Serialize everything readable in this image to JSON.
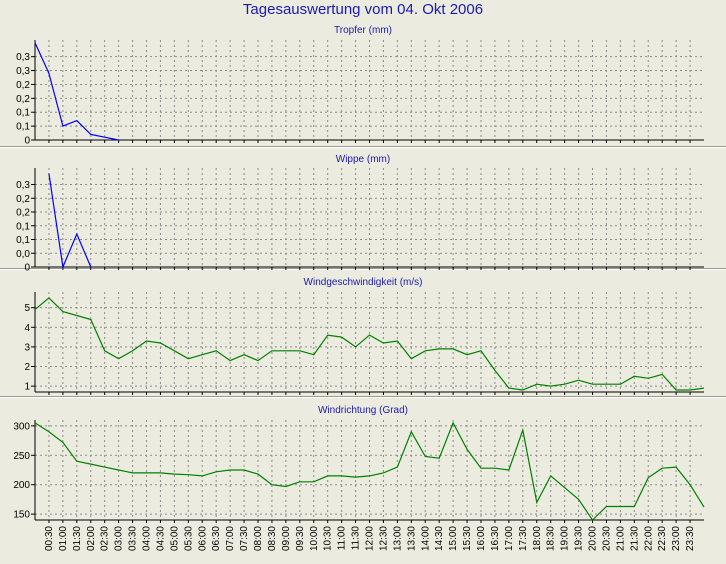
{
  "page": {
    "title": "Tagesauswertung vom 04. Okt 2006"
  },
  "x_labels": [
    "00:30",
    "01:00",
    "01:30",
    "02:00",
    "02:30",
    "03:00",
    "03:30",
    "04:00",
    "04:30",
    "05:00",
    "05:30",
    "06:00",
    "06:30",
    "07:00",
    "07:30",
    "08:00",
    "08:30",
    "09:00",
    "09:30",
    "10:00",
    "10:30",
    "11:00",
    "11:30",
    "12:00",
    "12:30",
    "13:00",
    "13:30",
    "14:00",
    "14:30",
    "15:00",
    "15:30",
    "16:00",
    "16:30",
    "17:00",
    "17:30",
    "18:00",
    "18:30",
    "19:00",
    "19:30",
    "20:00",
    "20:30",
    "21:00",
    "21:30",
    "22:00",
    "22:30",
    "23:00",
    "23:30"
  ],
  "chart_data": [
    {
      "type": "line",
      "title": "Tropfer (mm)",
      "ylim": [
        0,
        0.36
      ],
      "y_ticks": [
        0,
        0.05,
        0.1,
        0.15,
        0.2,
        0.25,
        0.3
      ],
      "y_tick_labels": [
        "0",
        "0,1",
        "0,1",
        "0,2",
        "0,2",
        "0,3",
        "0,3"
      ],
      "color": "#0000ff",
      "x": [
        0,
        0.5,
        1,
        1.5,
        2,
        2.5,
        3
      ],
      "values": [
        0.35,
        0.24,
        0.05,
        0.07,
        0.02,
        0.01,
        0
      ]
    },
    {
      "type": "line",
      "title": "Wippe (mm)",
      "ylim": [
        0,
        0.36
      ],
      "y_ticks": [
        0,
        0.05,
        0.1,
        0.15,
        0.2,
        0.25,
        0.3
      ],
      "y_tick_labels": [
        "0",
        "0,0",
        "0,1",
        "0,1",
        "0,2",
        "0,2",
        "0,3"
      ],
      "color": "#0000ff",
      "x": [
        0.5,
        1,
        1.5,
        2
      ],
      "values": [
        0.34,
        0,
        0.12,
        0
      ]
    },
    {
      "type": "line",
      "title": "Windgeschwindigkeit (m/s)",
      "ylim": [
        0.7,
        5.8
      ],
      "y_ticks": [
        1,
        2,
        3,
        4,
        5
      ],
      "y_tick_labels": [
        "1",
        "2",
        "3",
        "4",
        "5"
      ],
      "color": "#008000",
      "x": [
        0,
        0.5,
        1,
        1.5,
        2,
        2.5,
        3,
        3.5,
        4,
        4.5,
        5,
        5.5,
        6,
        6.5,
        7,
        7.5,
        8,
        8.5,
        9,
        9.5,
        10,
        10.5,
        11,
        11.5,
        12,
        12.5,
        13,
        13.5,
        14,
        14.5,
        15,
        15.5,
        16,
        16.5,
        17,
        17.5,
        18,
        18.5,
        19,
        19.5,
        20,
        20.5,
        21,
        21.5,
        22,
        22.5,
        23,
        23.5,
        24
      ],
      "values": [
        4.9,
        5.5,
        4.8,
        4.6,
        4.4,
        2.8,
        2.4,
        2.8,
        3.3,
        3.2,
        2.8,
        2.4,
        2.6,
        2.8,
        2.3,
        2.6,
        2.3,
        2.8,
        2.8,
        2.8,
        2.6,
        3.6,
        3.5,
        3.0,
        3.6,
        3.2,
        3.3,
        2.4,
        2.8,
        2.9,
        2.9,
        2.6,
        2.8,
        1.8,
        0.9,
        0.8,
        1.1,
        1.0,
        1.1,
        1.3,
        1.1,
        1.1,
        1.1,
        1.5,
        1.4,
        1.6,
        0.8,
        0.8,
        0.9
      ]
    },
    {
      "type": "line",
      "title": "Windrichtung (Grad)",
      "ylim": [
        140,
        310
      ],
      "y_ticks": [
        150,
        200,
        250,
        300
      ],
      "y_tick_labels": [
        "150",
        "200",
        "250",
        "300"
      ],
      "color": "#008000",
      "x": [
        0,
        0.5,
        1,
        1.5,
        2,
        2.5,
        3,
        3.5,
        4,
        4.5,
        5,
        5.5,
        6,
        6.5,
        7,
        7.5,
        8,
        8.5,
        9,
        9.5,
        10,
        10.5,
        11,
        11.5,
        12,
        12.5,
        13,
        13.5,
        14,
        14.5,
        15,
        15.5,
        16,
        16.5,
        17,
        17.5,
        18,
        18.5,
        19,
        19.5,
        20,
        20.5,
        21,
        21.5,
        22,
        22.5,
        23,
        23.5,
        24
      ],
      "values": [
        305,
        290,
        272,
        240,
        235,
        230,
        225,
        220,
        220,
        220,
        218,
        217,
        215,
        222,
        225,
        225,
        218,
        200,
        197,
        205,
        205,
        215,
        215,
        213,
        215,
        220,
        230,
        290,
        248,
        245,
        305,
        260,
        228,
        228,
        225,
        293,
        170,
        215,
        195,
        175,
        140,
        163,
        163,
        163,
        212,
        228,
        230,
        200,
        162
      ]
    }
  ]
}
